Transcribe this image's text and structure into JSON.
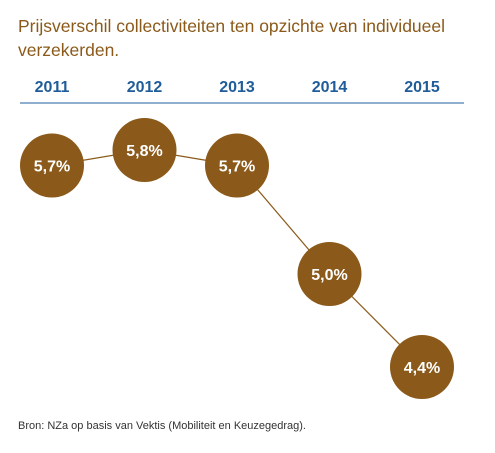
{
  "chart_data": {
    "type": "line",
    "title_lines": [
      "Prijsverschil collectiviteiten ten opzichte van individueel",
      "verzekerden."
    ],
    "categories": [
      "2011",
      "2012",
      "2013",
      "2014",
      "2015"
    ],
    "values": [
      5.7,
      5.8,
      5.7,
      5.0,
      4.4
    ],
    "value_labels": [
      "5,7%",
      "5,8%",
      "5,7%",
      "5,0%",
      "4,4%"
    ],
    "unit": "%",
    "grid": false,
    "legend": "none",
    "source": "Bron: NZa op basis van Vektis (Mobiliteit en Keuzegedrag)."
  },
  "colors": {
    "title": "#8b5a1a",
    "marker": "#8b5a1a",
    "line": "#8b5a1a",
    "year_text": "#1f5c99",
    "axis_rule": "#4a7fb5",
    "marker_text": "#ffffff"
  }
}
